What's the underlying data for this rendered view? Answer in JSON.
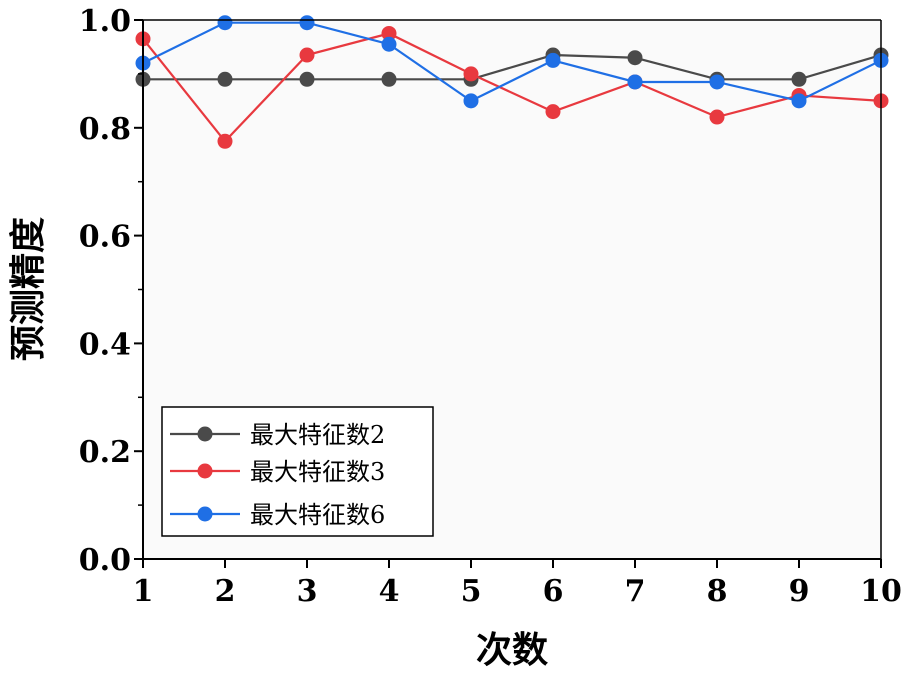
{
  "chart_data": {
    "type": "line",
    "title": "",
    "xlabel": "次数",
    "ylabel": "预测精度",
    "x": [
      1,
      2,
      3,
      4,
      5,
      6,
      7,
      8,
      9,
      10
    ],
    "xlim": [
      1,
      10
    ],
    "ylim": [
      0,
      1.0
    ],
    "x_ticks": [
      "1",
      "2",
      "3",
      "4",
      "5",
      "6",
      "7",
      "8",
      "9",
      "10"
    ],
    "y_ticks": [
      "0.0",
      "0.2",
      "0.4",
      "0.6",
      "0.8",
      "1.0"
    ],
    "grid": false,
    "legend_position": "bottom-left",
    "series": [
      {
        "name": "最大特征数2",
        "color": "#4a4a4a",
        "values": [
          0.89,
          0.89,
          0.89,
          0.89,
          0.89,
          0.935,
          0.93,
          0.89,
          0.89,
          0.935
        ]
      },
      {
        "name": "最大特征数3",
        "color": "#e8393f",
        "values": [
          0.965,
          0.775,
          0.935,
          0.975,
          0.9,
          0.83,
          0.885,
          0.82,
          0.86,
          0.85
        ]
      },
      {
        "name": "最大特征数6",
        "color": "#1f6fe5",
        "values": [
          0.92,
          0.995,
          0.995,
          0.955,
          0.85,
          0.925,
          0.885,
          0.885,
          0.85,
          0.925
        ]
      }
    ]
  }
}
